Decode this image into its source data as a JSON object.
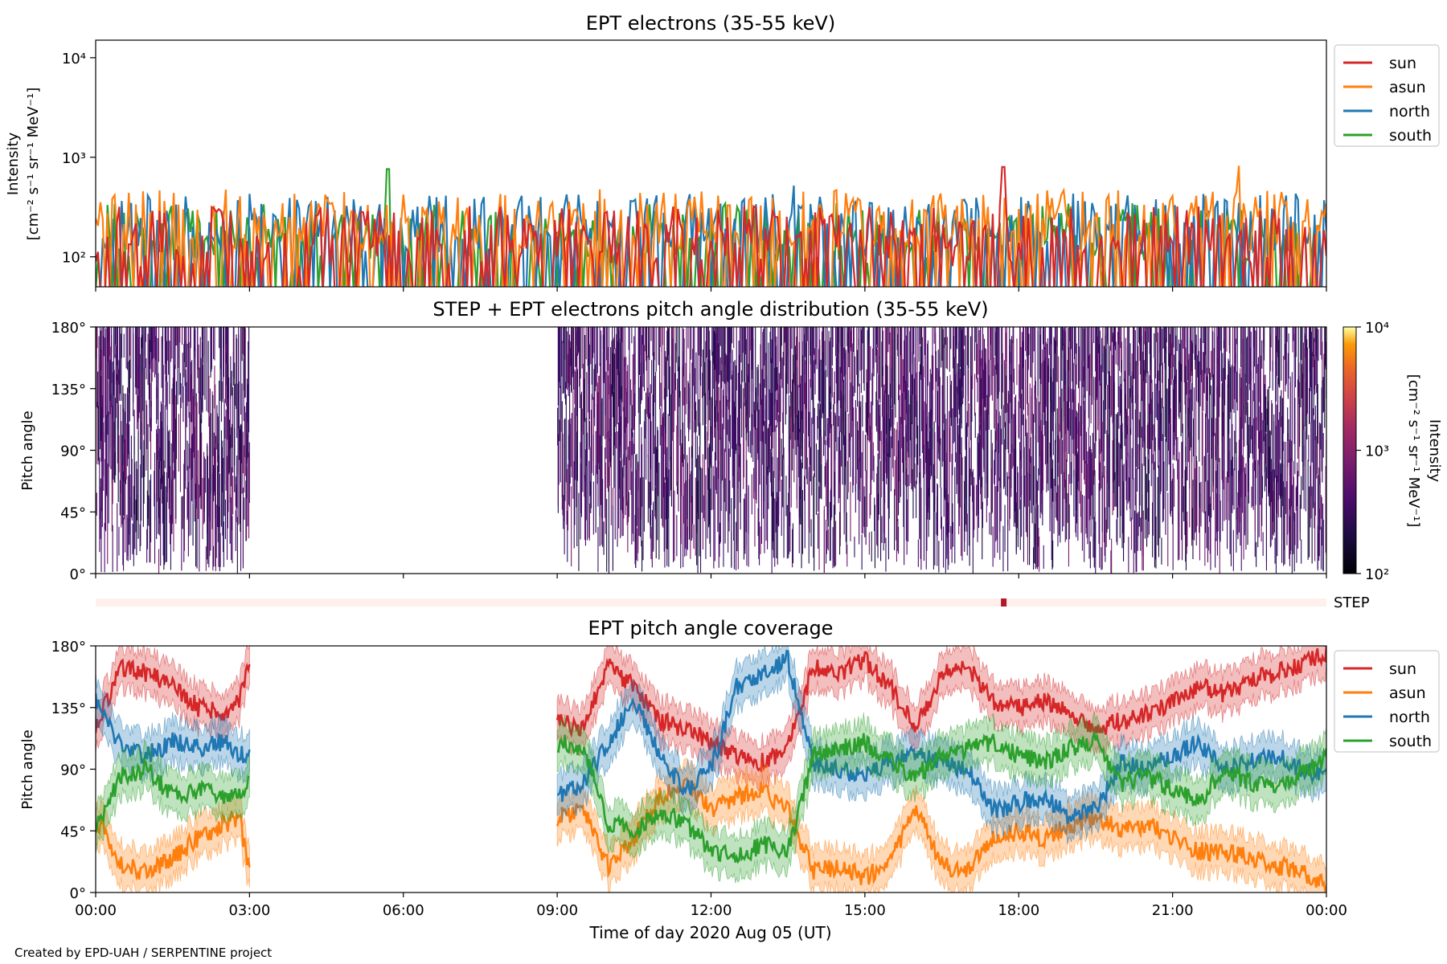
{
  "footer": "Created by EPD-UAH / SERPENTINE project",
  "colors": {
    "sun": "#d62728",
    "asun": "#ff7f0e",
    "north": "#1f77b4",
    "south": "#2ca02c",
    "step_bar_bg": "#fff0ec",
    "step_bar_mark": "#b2182b",
    "pad_low": "#1b0c41",
    "pad_mid": "#4a0c6b",
    "pad_high": "#781c6d"
  },
  "chart_data": [
    {
      "type": "line",
      "title": "EPT electrons (35-55 keV)",
      "ylabel": "Intensity",
      "ylabel_units": "[cm⁻² s⁻¹ sr⁻¹ MeV⁻¹]",
      "yscale": "log",
      "ylim": [
        50,
        15000
      ],
      "yticks": [
        {
          "value": 100,
          "label": "10²"
        },
        {
          "value": 1000,
          "label": "10³"
        },
        {
          "value": 10000,
          "label": "10⁴"
        }
      ],
      "xlim_hours": [
        0,
        24
      ],
      "x_ticks_labeled": false,
      "legend_position": "outside-right-top",
      "series": [
        {
          "name": "sun",
          "color_key": "sun",
          "typical": 150,
          "peak": 800,
          "peak_hour": 17.7
        },
        {
          "name": "asun",
          "color_key": "asun",
          "typical": 220,
          "peak": 820,
          "peak_hour": 22.3
        },
        {
          "name": "north",
          "color_key": "north",
          "typical": 200,
          "peak": 520,
          "peak_hour": 13.6
        },
        {
          "name": "south",
          "color_key": "south",
          "typical": 160,
          "peak": 760,
          "peak_hour": 5.7
        }
      ],
      "legend": [
        "sun",
        "asun",
        "north",
        "south"
      ]
    },
    {
      "type": "heatmap",
      "title": "STEP + EPT electrons pitch angle distribution (35-55 keV)",
      "ylabel": "Pitch angle",
      "ylim": [
        0,
        180
      ],
      "yticks": [
        {
          "value": 0,
          "label": "0°"
        },
        {
          "value": 45,
          "label": "45°"
        },
        {
          "value": 90,
          "label": "90°"
        },
        {
          "value": 135,
          "label": "135°"
        },
        {
          "value": 180,
          "label": "180°"
        }
      ],
      "xlim_hours": [
        0,
        24
      ],
      "data_coverage_hours": [
        [
          0,
          3
        ],
        [
          9,
          24
        ]
      ],
      "colorbar": {
        "label": "Intensity",
        "units": "[cm⁻² s⁻¹ sr⁻¹ MeV⁻¹]",
        "scale": "log",
        "range": [
          100,
          10000
        ],
        "ticks": [
          {
            "value": 100,
            "label": "10²"
          },
          {
            "value": 1000,
            "label": "10³"
          },
          {
            "value": 10000,
            "label": "10⁴"
          }
        ],
        "colormap": "inferno"
      },
      "step_bar": {
        "label": "STEP",
        "mark_hour": 17.7
      }
    },
    {
      "type": "line",
      "title": "EPT pitch angle coverage",
      "ylabel": "Pitch angle",
      "xlabel": "Time of day 2020 Aug 05 (UT)",
      "ylim": [
        0,
        180
      ],
      "yticks": [
        {
          "value": 0,
          "label": "0°"
        },
        {
          "value": 45,
          "label": "45°"
        },
        {
          "value": 90,
          "label": "90°"
        },
        {
          "value": 135,
          "label": "135°"
        },
        {
          "value": 180,
          "label": "180°"
        }
      ],
      "xlim_hours": [
        0,
        24
      ],
      "xticks": [
        {
          "value": 0,
          "label": "00:00"
        },
        {
          "value": 3,
          "label": "03:00"
        },
        {
          "value": 6,
          "label": "06:00"
        },
        {
          "value": 9,
          "label": "09:00"
        },
        {
          "value": 12,
          "label": "12:00"
        },
        {
          "value": 15,
          "label": "15:00"
        },
        {
          "value": 18,
          "label": "18:00"
        },
        {
          "value": 21,
          "label": "21:00"
        },
        {
          "value": 24,
          "label": "00:00"
        }
      ],
      "data_coverage_hours": [
        [
          0,
          3
        ],
        [
          9,
          24
        ]
      ],
      "legend_position": "outside-right-top",
      "band_half_width_deg": 15,
      "series": [
        {
          "name": "sun",
          "color_key": "sun",
          "x": [
            0,
            0.5,
            1,
            1.5,
            2,
            2.5,
            2.8,
            3,
            9,
            9.5,
            10,
            10.5,
            11,
            11.5,
            12,
            12.5,
            13,
            13.5,
            14,
            14.5,
            15,
            15.5,
            16,
            16.5,
            17,
            17.5,
            18,
            18.5,
            19,
            19.5,
            20,
            20.5,
            21,
            21.5,
            22,
            22.5,
            23,
            23.5,
            24
          ],
          "y": [
            120,
            165,
            160,
            150,
            135,
            130,
            140,
            165,
            125,
            120,
            165,
            150,
            125,
            120,
            110,
            100,
            95,
            105,
            165,
            160,
            170,
            150,
            120,
            160,
            165,
            140,
            135,
            140,
            130,
            120,
            125,
            130,
            140,
            150,
            145,
            155,
            160,
            165,
            175
          ]
        },
        {
          "name": "asun",
          "color_key": "asun",
          "x": [
            0,
            0.5,
            1,
            1.5,
            2,
            2.5,
            2.8,
            3,
            9,
            9.5,
            10,
            10.5,
            11,
            11.5,
            12,
            12.5,
            13,
            13.5,
            14,
            14.5,
            15,
            15.5,
            16,
            16.5,
            17,
            17.5,
            18,
            18.5,
            19,
            19.5,
            20,
            20.5,
            21,
            21.5,
            22,
            22.5,
            23,
            23.5,
            24
          ],
          "y": [
            55,
            20,
            15,
            25,
            40,
            50,
            55,
            15,
            55,
            60,
            20,
            40,
            70,
            80,
            60,
            70,
            75,
            60,
            15,
            20,
            10,
            25,
            60,
            20,
            15,
            40,
            45,
            40,
            50,
            55,
            45,
            50,
            40,
            30,
            30,
            25,
            20,
            15,
            5
          ]
        },
        {
          "name": "north",
          "color_key": "north",
          "x": [
            0,
            0.5,
            1,
            1.5,
            2,
            2.5,
            2.8,
            3,
            9,
            9.5,
            10,
            10.5,
            11,
            11.5,
            12,
            12.5,
            13,
            13.5,
            14,
            14.5,
            15,
            15.5,
            16,
            16.5,
            17,
            17.5,
            18,
            18.5,
            19,
            19.5,
            20,
            20.5,
            21,
            21.5,
            22,
            22.5,
            23,
            23.5,
            24
          ],
          "y": [
            140,
            105,
            100,
            110,
            105,
            110,
            100,
            100,
            70,
            80,
            110,
            140,
            100,
            75,
            90,
            150,
            160,
            170,
            95,
            90,
            85,
            95,
            100,
            95,
            90,
            60,
            65,
            70,
            55,
            60,
            95,
            90,
            100,
            110,
            90,
            95,
            100,
            90,
            85
          ]
        },
        {
          "name": "south",
          "color_key": "south",
          "x": [
            0,
            0.5,
            1,
            1.5,
            2,
            2.5,
            2.8,
            3,
            9,
            9.5,
            10,
            10.5,
            11,
            11.5,
            12,
            12.5,
            13,
            13.5,
            14,
            14.5,
            15,
            15.5,
            16,
            16.5,
            17,
            17.5,
            18,
            18.5,
            19,
            19.5,
            20,
            20.5,
            21,
            21.5,
            22,
            22.5,
            23,
            23.5,
            24
          ],
          "y": [
            45,
            85,
            90,
            70,
            75,
            70,
            75,
            80,
            110,
            105,
            50,
            45,
            60,
            50,
            30,
            25,
            35,
            30,
            100,
            105,
            110,
            95,
            85,
            100,
            105,
            110,
            100,
            95,
            105,
            110,
            80,
            85,
            75,
            65,
            90,
            80,
            75,
            85,
            100
          ]
        }
      ],
      "legend": [
        "sun",
        "asun",
        "north",
        "south"
      ]
    }
  ]
}
